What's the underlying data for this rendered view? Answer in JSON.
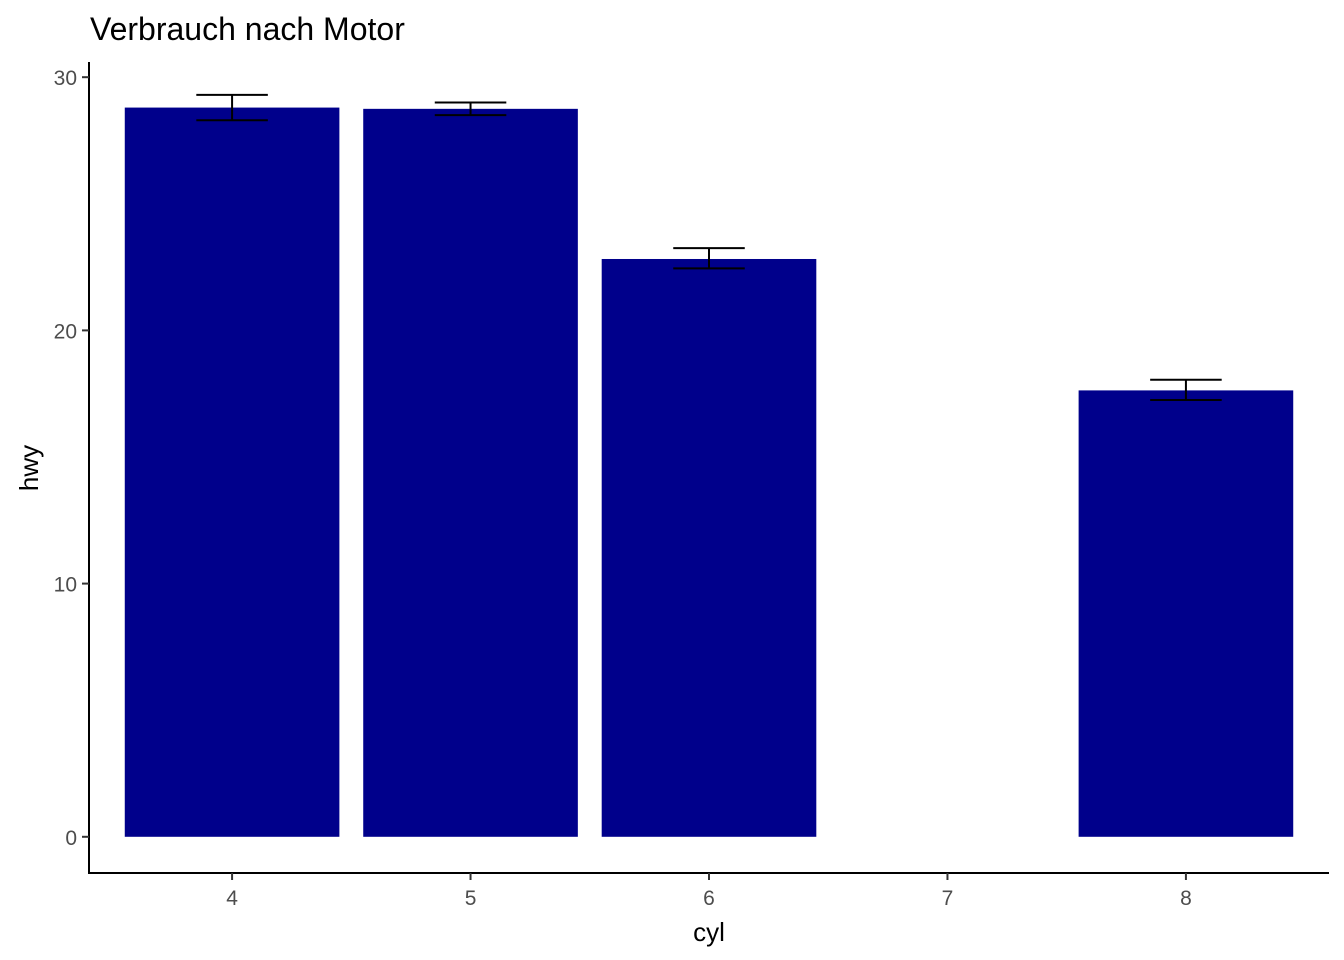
{
  "chart_data": {
    "type": "bar",
    "title": "Verbrauch nach Motor",
    "xlabel": "cyl",
    "ylabel": "hwy",
    "x_ticks": [
      "4",
      "5",
      "6",
      "7",
      "8"
    ],
    "xlim": [
      3.4,
      8.6
    ],
    "y_ticks": [
      "0",
      "10",
      "20",
      "30"
    ],
    "ylim": [
      -1.43,
      30.6
    ],
    "grid": false,
    "bar_color": "#00008B",
    "errorbar_color": "#000000",
    "categories": [
      "4",
      "5",
      "6",
      "8"
    ],
    "series": [
      {
        "x": [
          4,
          5,
          6,
          8
        ],
        "values": [
          28.8,
          28.75,
          22.82,
          17.63
        ],
        "error_low": [
          28.3,
          28.5,
          22.45,
          17.25
        ],
        "error_high": [
          29.3,
          29.0,
          23.25,
          18.05
        ]
      }
    ]
  }
}
